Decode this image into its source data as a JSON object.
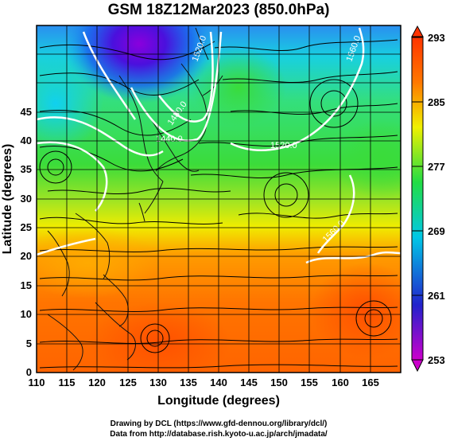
{
  "title": "GSM 18Z12Mar2023 (850.0hPa)",
  "x_axis": {
    "label": "Longitude (degrees)",
    "range": [
      110,
      170
    ],
    "ticks": [
      "110",
      "115",
      "120",
      "125",
      "130",
      "135",
      "140",
      "145",
      "150",
      "155",
      "160",
      "165"
    ]
  },
  "y_axis": {
    "label": "Latitude  (degrees)",
    "range": [
      0,
      50
    ],
    "ticks": [
      "0",
      "5",
      "10",
      "15",
      "20",
      "25",
      "30",
      "35",
      "40",
      "45"
    ]
  },
  "colorbar": {
    "ticks": [
      "253",
      "261",
      "269",
      "277",
      "285",
      "293"
    ],
    "min": 253,
    "max": 293,
    "stops": [
      "#cc00cc",
      "#2222cc",
      "#00c8e6",
      "#22dd44",
      "#f0f000",
      "#ff7700",
      "#ff3300"
    ]
  },
  "contour_labels": [
    "1440.0",
    "1480.0",
    "1520.0",
    "1560.0",
    "1560.0",
    "1520.0"
  ],
  "credits": {
    "line1": "Drawing by DCL (https://www.gfd-dennou.org/library/dcl/)",
    "line2": "Data from http://database.rish.kyoto-u.ac.jp/arch/jmadata/"
  }
}
